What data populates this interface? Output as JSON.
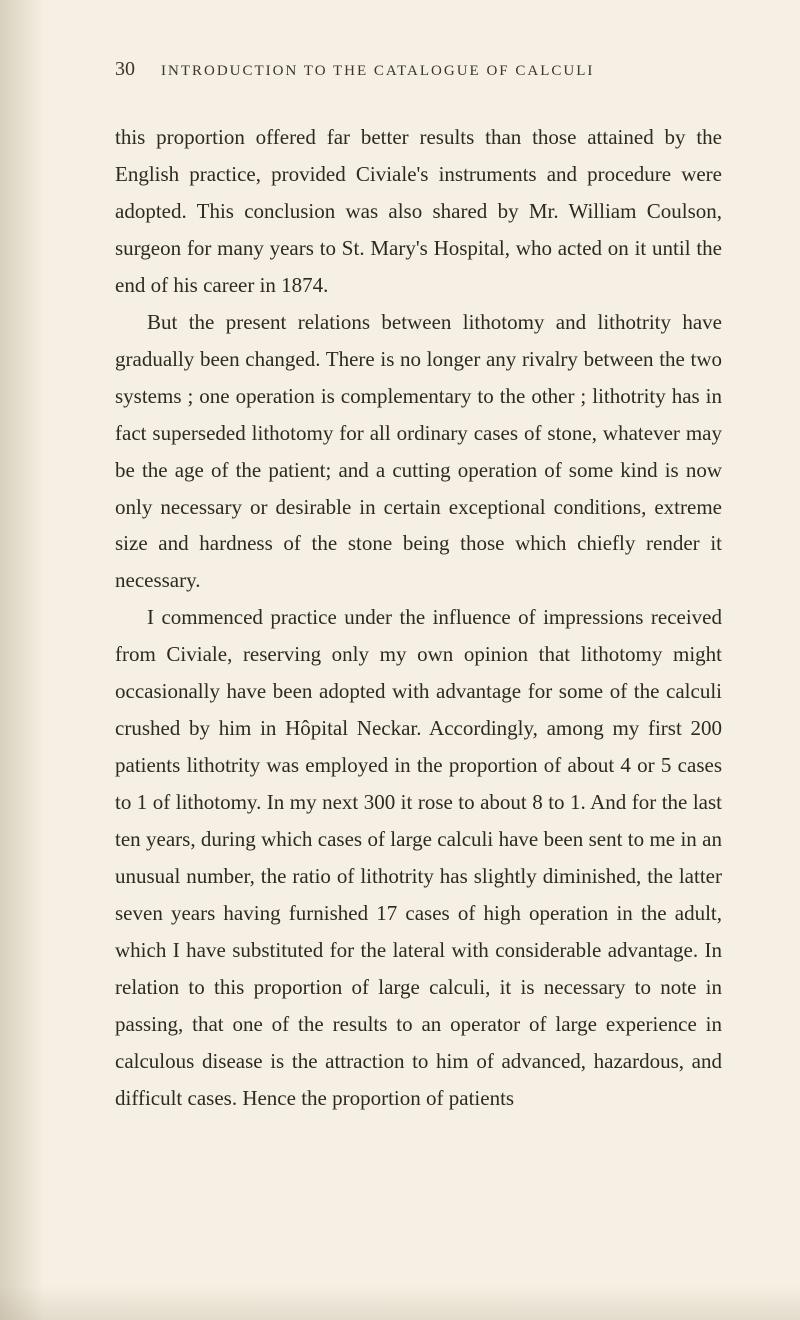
{
  "page": {
    "number": "30",
    "running_title": "INTRODUCTION TO THE CATALOGUE OF CALCULI",
    "background_color": "#f5f0e3",
    "text_color": "#2e2a20",
    "body_font_size_pt": 16,
    "header_font_size_pt": 11,
    "line_height": 1.76
  },
  "paragraphs": {
    "p1": "this proportion offered far better results than those attained by the English practice, provided Civiale's instruments and procedure were adopted. This conclusion was also shared by Mr. William Coulson, surgeon for many years to St. Mary's Hospital, who acted on it until the end of his career in 1874.",
    "p2": "But the present relations between lithotomy and litho­trity have gradually been changed. There is no longer any rivalry between the two systems ; one operation is complementary to the other ; lithotrity has in fact super­seded lithotomy for all ordinary cases of stone, whatever may be the age of the patient; and a cutting operation of some kind is now only necessary or desirable in certain exceptional conditions, extreme size and hardness of the stone being those which chiefly render it necessary.",
    "p3": "I commenced practice under the influence of impres­sions received from Civiale, reserving only my own opinion that lithotomy might occasionally have been adopted with advantage for some of the calculi crushed by him in Hôpital Neckar. Accordingly, among my first 200 patients lithotrity was employed in the proportion of about 4 or 5 cases to 1 of lithotomy. In my next 300 it rose to about 8 to 1. And for the last ten years, during which cases of large calculi have been sent to me in an unusual number, the ratio of lithotrity has slightly diminished, the latter seven years having furnished 17 cases of high operation in the adult, which I have substituted for the lateral with considerable advantage. In relation to this proportion of large calculi, it is necessary to note in passing, that one of the results to an operator of large experience in calcu­lous disease is the attraction to him of advanced, hazard­ous, and difficult cases. Hence the proportion of patients"
  }
}
